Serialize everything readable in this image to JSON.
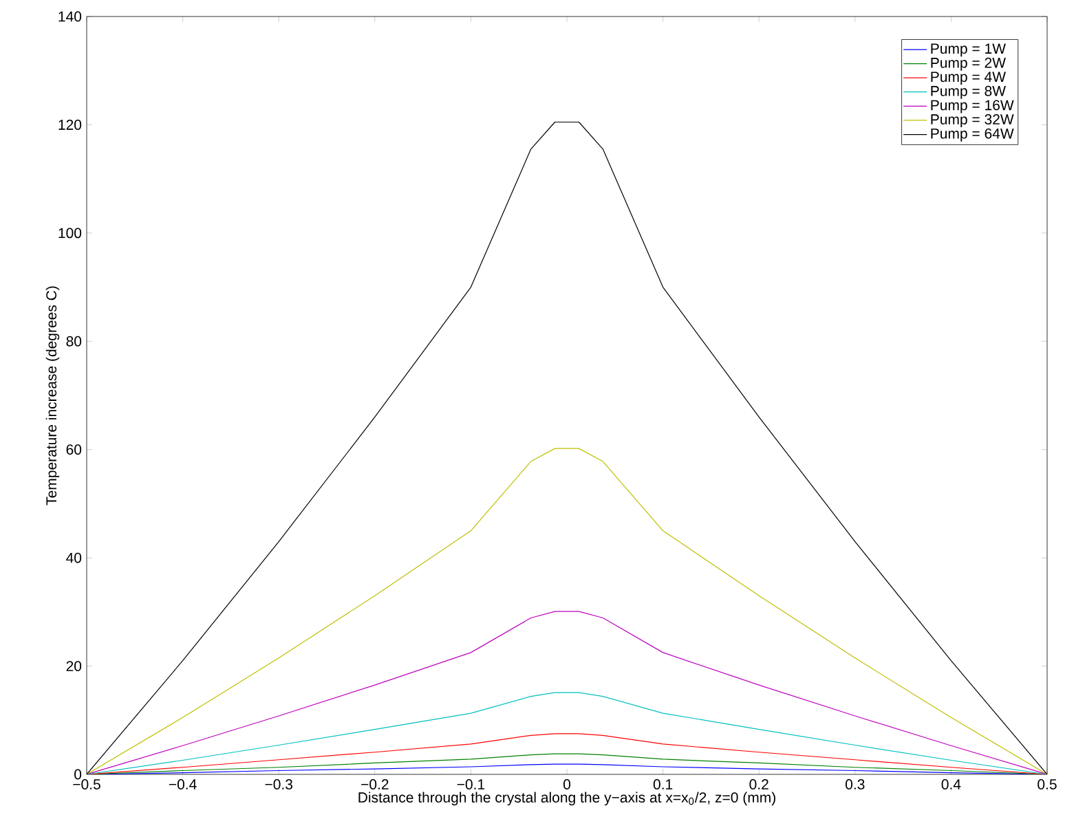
{
  "chart_data": {
    "type": "line",
    "xlabel": "Distance through the crystal along the y−axis at x=x$_{0}$/2, z=0 (mm)",
    "ylabel": "Temperature increase (degrees C)",
    "x": [
      -0.5,
      -0.4,
      -0.3,
      -0.2,
      -0.1,
      -0.0375,
      -0.0125,
      0.0125,
      0.0375,
      0.1,
      0.2,
      0.3,
      0.4,
      0.5
    ],
    "series": [
      {
        "name": "Pump = 1W",
        "color": "#0000ff",
        "values": [
          0,
          0.3,
          0.7,
          1.0,
          1.4,
          1.8,
          1.9,
          1.9,
          1.8,
          1.4,
          1.0,
          0.7,
          0.3,
          0
        ]
      },
      {
        "name": "Pump = 2W",
        "color": "#008000",
        "values": [
          0,
          0.7,
          1.3,
          2.1,
          2.8,
          3.6,
          3.8,
          3.8,
          3.6,
          2.8,
          2.1,
          1.3,
          0.7,
          0
        ]
      },
      {
        "name": "Pump = 4W",
        "color": "#ff0000",
        "values": [
          0,
          1.3,
          2.7,
          4.1,
          5.6,
          7.2,
          7.5,
          7.5,
          7.2,
          5.6,
          4.1,
          2.7,
          1.3,
          0
        ]
      },
      {
        "name": "Pump = 8W",
        "color": "#00bfbf",
        "values": [
          0,
          2.6,
          5.4,
          8.3,
          11.3,
          14.4,
          15.1,
          15.1,
          14.4,
          11.3,
          8.3,
          5.4,
          2.6,
          0
        ]
      },
      {
        "name": "Pump = 16W",
        "color": "#bf00bf",
        "values": [
          0,
          5.3,
          10.8,
          16.5,
          22.5,
          28.9,
          30.1,
          30.1,
          28.9,
          22.5,
          16.5,
          10.8,
          5.3,
          0
        ]
      },
      {
        "name": "Pump = 32W",
        "color": "#bfbf00",
        "values": [
          0,
          10.5,
          21.5,
          33,
          45,
          57.8,
          60.2,
          60.2,
          57.8,
          45,
          33,
          21.5,
          10.5,
          0
        ]
      },
      {
        "name": "Pump = 64W",
        "color": "#000000",
        "values": [
          0,
          21,
          43,
          66,
          90,
          115.5,
          120.5,
          120.5,
          115.5,
          90,
          66,
          43,
          21,
          0
        ]
      }
    ],
    "xlim": [
      -0.5,
      0.5
    ],
    "xticks": [
      {
        "value": -0.5,
        "label": "−0.5"
      },
      {
        "value": -0.4,
        "label": "−0.4"
      },
      {
        "value": -0.3,
        "label": "−0.3"
      },
      {
        "value": -0.2,
        "label": "−0.2"
      },
      {
        "value": -0.1,
        "label": "−0.1"
      },
      0,
      0.1,
      0.2,
      0.3,
      0.4,
      0.5
    ],
    "ylim": [
      0,
      140
    ],
    "yticks": [
      0,
      20,
      40,
      60,
      80,
      100,
      120,
      140
    ],
    "legend": "top right",
    "marker": "none",
    "line_style": "solid"
  }
}
